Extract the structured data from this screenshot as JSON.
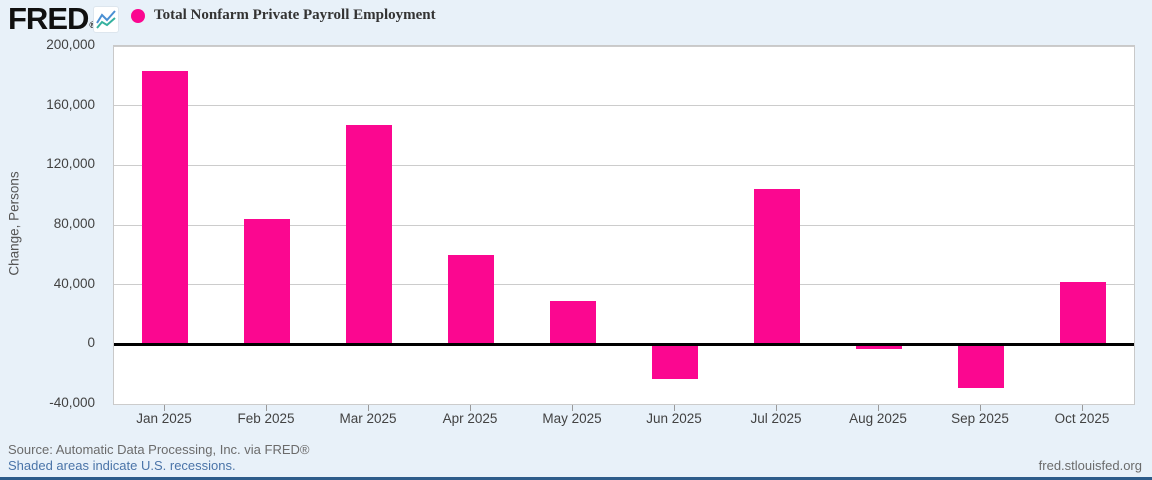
{
  "header": {
    "logo_text": "FRED",
    "registered_mark": "®",
    "legend": {
      "label": "Total Nonfarm Private Payroll Employment",
      "marker_color": "#fb0790"
    }
  },
  "chart_data": {
    "type": "bar",
    "title": "Total Nonfarm Private Payroll Employment",
    "categories": [
      "Jan 2025",
      "Feb 2025",
      "Mar 2025",
      "Apr 2025",
      "May 2025",
      "Jun 2025",
      "Jul 2025",
      "Aug 2025",
      "Sep 2025",
      "Oct 2025"
    ],
    "values": [
      183000,
      84000,
      147000,
      60000,
      29000,
      -23000,
      104000,
      -3000,
      -29000,
      42000
    ],
    "xlabel": "",
    "ylabel": "Change, Persons",
    "ylim": [
      -40000,
      200000
    ],
    "grid": true,
    "legend_position": "top-left",
    "bar_color": "#fb0790",
    "yticks": [
      {
        "v": 200000,
        "label": "200,000"
      },
      {
        "v": 160000,
        "label": "160,000"
      },
      {
        "v": 120000,
        "label": "120,000"
      },
      {
        "v": 80000,
        "label": "80,000"
      },
      {
        "v": 40000,
        "label": "40,000"
      },
      {
        "v": 0,
        "label": "0"
      },
      {
        "v": -40000,
        "label": "-40,000"
      }
    ]
  },
  "footer": {
    "source": "Source: Automatic Data Processing, Inc. via FRED®",
    "recession_note": "Shaded areas indicate U.S. recessions.",
    "site": "fred.stlouisfed.org"
  },
  "colors": {
    "background": "#e8f1f9",
    "bar_pink": "#fb0790",
    "link_blue": "#4a74a8",
    "bottom_bar": "#2d5c8a",
    "spark_blue": "#4a8fd3",
    "spark_teal": "#35b19f"
  }
}
